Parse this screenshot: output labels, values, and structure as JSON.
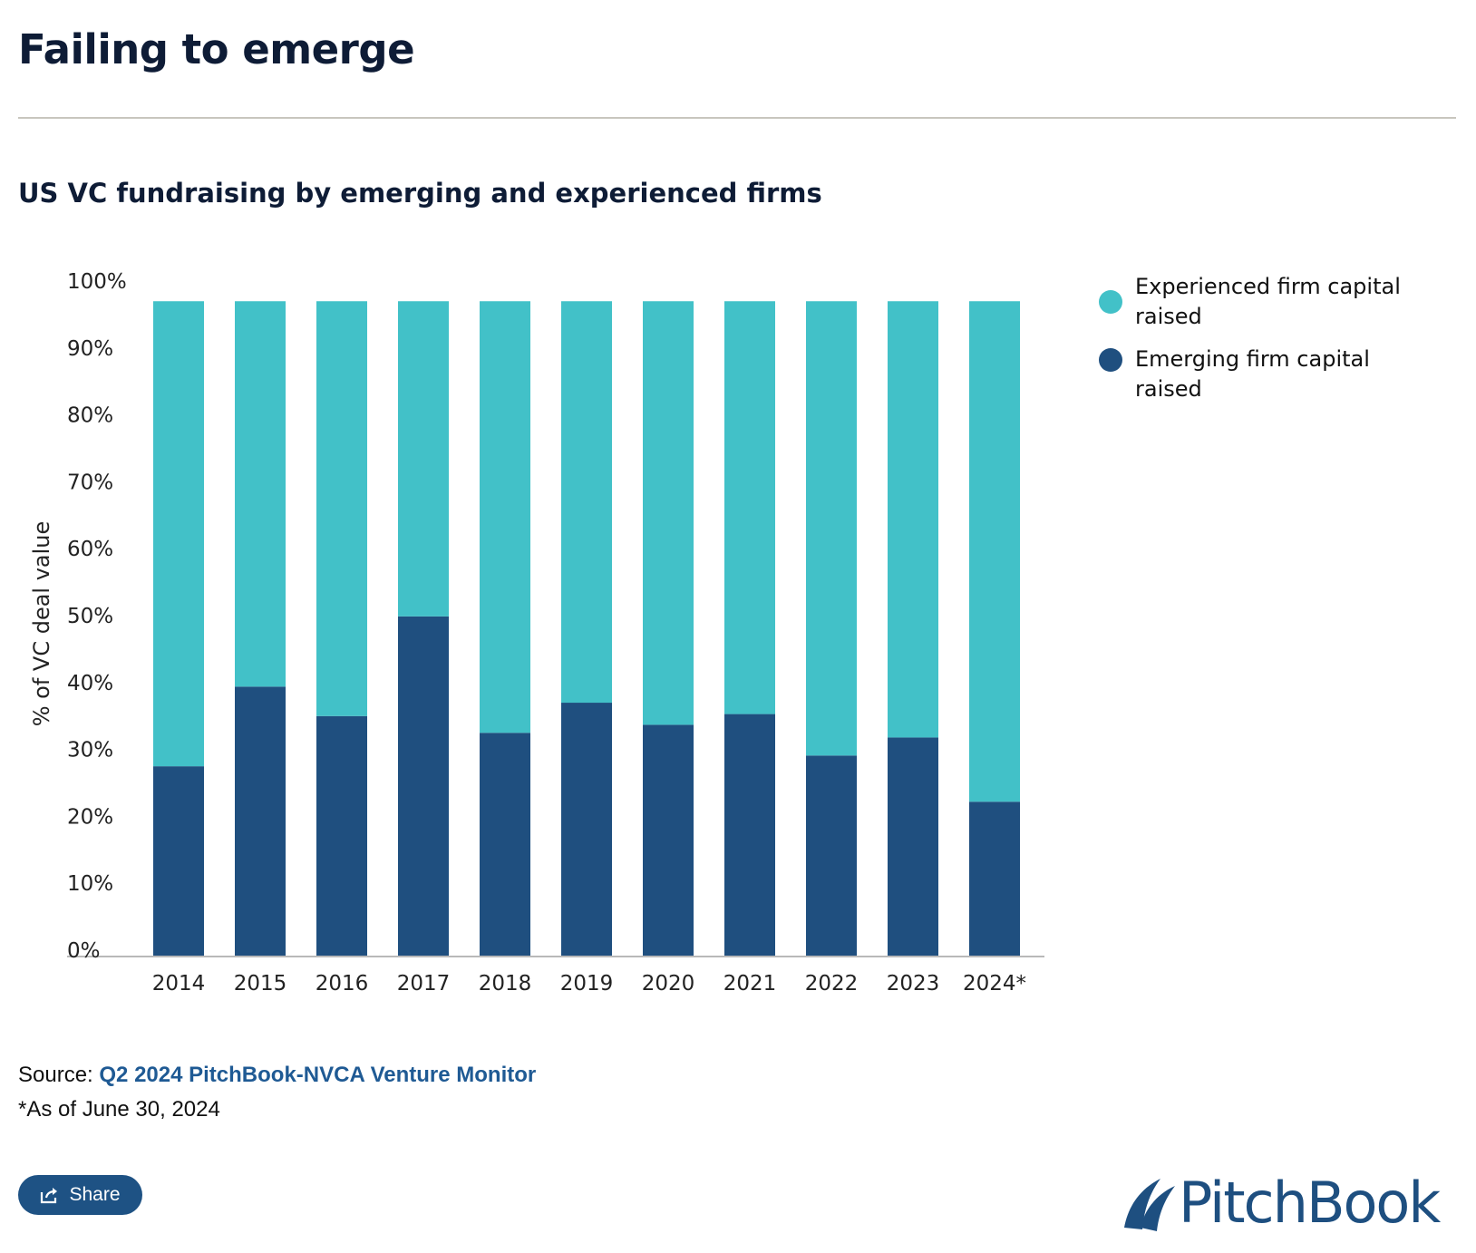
{
  "header": {
    "title": "Failing to emerge",
    "subtitle": "US VC fundraising by emerging and experienced firms"
  },
  "chart_data": {
    "type": "bar",
    "stacked": true,
    "title": "US VC fundraising by emerging and experienced firms",
    "xlabel": "",
    "ylabel": "% of VC deal value",
    "ylim": [
      0,
      100
    ],
    "y_ticks": [
      "0%",
      "10%",
      "20%",
      "30%",
      "40%",
      "50%",
      "60%",
      "70%",
      "80%",
      "90%",
      "100%"
    ],
    "categories": [
      "2014",
      "2015",
      "2016",
      "2017",
      "2018",
      "2019",
      "2020",
      "2021",
      "2022",
      "2023",
      "2024*"
    ],
    "series": [
      {
        "name": "Emerging firm capital raised",
        "color": "#1f4f7f",
        "values": [
          28.3,
          40.2,
          35.8,
          50.7,
          33.3,
          37.8,
          34.5,
          36.1,
          29.9,
          32.6,
          23.0
        ]
      },
      {
        "name": "Experienced firm capital raised",
        "color": "#42c1c8",
        "values": [
          71.7,
          59.8,
          64.2,
          49.3,
          66.7,
          62.2,
          65.5,
          63.9,
          70.1,
          67.4,
          77.0
        ]
      }
    ],
    "grid": false,
    "legend_position": "right"
  },
  "legend": {
    "items": [
      {
        "label": "Experienced firm capital raised",
        "color": "#42c1c8"
      },
      {
        "label": "Emerging firm capital raised",
        "color": "#1f4f7f"
      }
    ]
  },
  "footer": {
    "source_prefix": "Source:",
    "source_link": "Q2 2024 PitchBook-NVCA Venture Monitor",
    "note": "*As of June 30, 2024",
    "share_label": "Share",
    "logo_text": "PitchBook"
  }
}
